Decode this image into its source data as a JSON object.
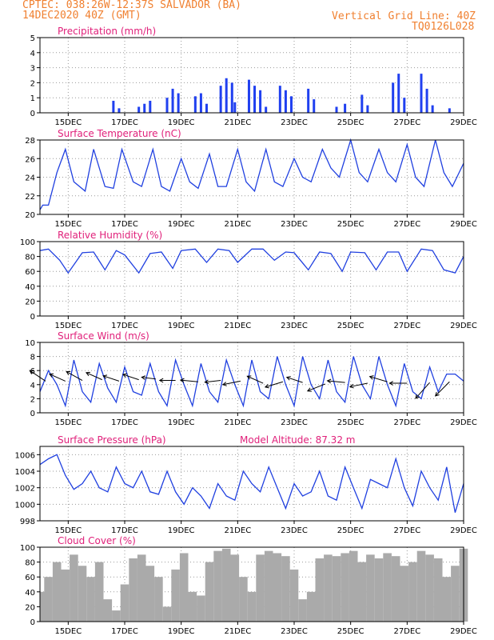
{
  "header": {
    "line1": "CPTEC:   038:26W-12:37S   SALVADOR (BA)",
    "line2": "14DEC2020 40Z (GMT)",
    "vgrid": "Vertical Grid Line: 40Z",
    "code": "TQ0126L028"
  },
  "colors": {
    "header": "#f08030",
    "title": "#e0207a",
    "line": "#2040e0",
    "bar": "#2040f0",
    "cloud": "#aaaaaa",
    "grid": "#999999"
  },
  "x_ticks": [
    "15DEC",
    "17DEC",
    "19DEC",
    "21DEC",
    "23DEC",
    "25DEC",
    "27DEC",
    "29DEC"
  ],
  "chart_data": [
    {
      "type": "bar",
      "title": "Precipitation (mm/h)",
      "ylim": [
        0,
        5
      ],
      "yticks": [
        "0",
        "1",
        "2",
        "3",
        "4",
        "5"
      ],
      "xlim": [
        14.0,
        29.0
      ],
      "x": [
        16.6,
        16.8,
        17.5,
        17.7,
        17.9,
        18.5,
        18.7,
        18.9,
        19.5,
        19.7,
        19.9,
        20.4,
        20.6,
        20.8,
        20.9,
        21.4,
        21.6,
        21.8,
        22.0,
        22.5,
        22.7,
        22.9,
        23.5,
        23.7,
        24.5,
        24.8,
        25.4,
        25.6,
        26.5,
        26.7,
        26.9,
        27.5,
        27.7,
        27.9,
        28.5
      ],
      "values": [
        0.8,
        0.3,
        0.4,
        0.6,
        0.8,
        1.0,
        1.6,
        1.3,
        1.1,
        1.3,
        0.6,
        1.8,
        2.3,
        2.0,
        0.7,
        2.2,
        1.8,
        1.5,
        0.4,
        1.8,
        1.5,
        1.1,
        1.6,
        0.9,
        0.4,
        0.6,
        1.2,
        0.5,
        2.0,
        2.6,
        1.0,
        2.6,
        1.6,
        0.5,
        0.3
      ]
    },
    {
      "type": "line",
      "title": "Surface Temperature (nC)",
      "ylim": [
        20,
        28
      ],
      "yticks": [
        "20",
        "22",
        "24",
        "26",
        "28"
      ],
      "xlim": [
        14.0,
        29.0
      ],
      "x": [
        14.0,
        14.1,
        14.3,
        14.6,
        14.9,
        15.2,
        15.6,
        15.9,
        16.3,
        16.6,
        16.9,
        17.3,
        17.6,
        18.0,
        18.3,
        18.6,
        19.0,
        19.3,
        19.6,
        20.0,
        20.3,
        20.6,
        21.0,
        21.3,
        21.6,
        22.0,
        22.3,
        22.6,
        23.0,
        23.3,
        23.6,
        24.0,
        24.3,
        24.6,
        25.0,
        25.3,
        25.6,
        26.0,
        26.3,
        26.6,
        27.0,
        27.3,
        27.6,
        28.0,
        28.3,
        28.6,
        29.0
      ],
      "values": [
        20.5,
        21.0,
        21.0,
        24.5,
        27.0,
        23.5,
        22.5,
        27.0,
        23.0,
        22.8,
        27.0,
        23.5,
        23.0,
        27.0,
        23.0,
        22.5,
        26.0,
        23.5,
        22.8,
        26.5,
        23.0,
        23.0,
        27.0,
        23.5,
        22.5,
        27.0,
        23.5,
        23.0,
        26.0,
        24.0,
        23.5,
        27.0,
        25.0,
        24.0,
        28.0,
        24.5,
        23.5,
        27.0,
        24.5,
        23.5,
        27.5,
        24.0,
        23.0,
        28.0,
        24.5,
        23.0,
        25.5
      ]
    },
    {
      "type": "line",
      "title": "Relative Humidity (%)",
      "ylim": [
        0,
        100
      ],
      "yticks": [
        "0",
        "20",
        "40",
        "60",
        "80",
        "100"
      ],
      "xlim": [
        14.0,
        29.0
      ],
      "x": [
        14.0,
        14.3,
        14.7,
        15.0,
        15.5,
        15.9,
        16.3,
        16.7,
        17.0,
        17.5,
        17.9,
        18.3,
        18.7,
        19.0,
        19.5,
        19.9,
        20.3,
        20.7,
        21.0,
        21.5,
        21.9,
        22.3,
        22.7,
        23.0,
        23.5,
        23.9,
        24.3,
        24.7,
        25.0,
        25.5,
        25.9,
        26.3,
        26.7,
        27.0,
        27.5,
        27.9,
        28.3,
        28.7,
        29.0
      ],
      "values": [
        88,
        90,
        75,
        58,
        85,
        86,
        62,
        88,
        82,
        58,
        84,
        86,
        64,
        88,
        90,
        72,
        90,
        88,
        72,
        90,
        90,
        75,
        86,
        85,
        62,
        86,
        84,
        60,
        86,
        85,
        62,
        86,
        86,
        60,
        90,
        88,
        62,
        58,
        80
      ]
    },
    {
      "type": "line",
      "title": "Surface Wind (m/s)",
      "ylim": [
        0,
        10
      ],
      "yticks": [
        "0",
        "2",
        "4",
        "6",
        "8",
        "10"
      ],
      "xlim": [
        14.0,
        29.0
      ],
      "x": [
        14.0,
        14.3,
        14.6,
        14.9,
        15.2,
        15.5,
        15.8,
        16.1,
        16.4,
        16.7,
        17.0,
        17.3,
        17.6,
        17.9,
        18.2,
        18.5,
        18.8,
        19.1,
        19.4,
        19.7,
        20.0,
        20.3,
        20.6,
        20.9,
        21.2,
        21.5,
        21.8,
        22.1,
        22.4,
        22.7,
        23.0,
        23.3,
        23.6,
        23.9,
        24.2,
        24.5,
        24.8,
        25.1,
        25.4,
        25.7,
        26.0,
        26.3,
        26.6,
        26.9,
        27.2,
        27.5,
        27.8,
        28.1,
        28.4,
        28.7,
        29.0
      ],
      "values": [
        3.0,
        6.0,
        4.0,
        1.0,
        7.5,
        3.0,
        1.5,
        7.0,
        3.5,
        1.5,
        6.5,
        3.0,
        2.5,
        7.0,
        3.0,
        1.0,
        7.5,
        4.0,
        1.0,
        7.0,
        3.0,
        1.5,
        7.5,
        4.0,
        1.0,
        7.5,
        3.0,
        2.0,
        8.0,
        4.0,
        1.0,
        8.0,
        4.0,
        2.0,
        7.5,
        3.0,
        1.5,
        8.0,
        4.0,
        2.0,
        8.0,
        4.0,
        1.0,
        7.0,
        3.0,
        2.0,
        6.5,
        3.0,
        5.5,
        5.5,
        4.5
      ],
      "arrows": {
        "x": [
          14.2,
          14.9,
          15.5,
          16.2,
          16.8,
          17.5,
          18.1,
          18.8,
          19.6,
          20.4,
          21.1,
          21.9,
          22.6,
          23.3,
          24.1,
          24.8,
          25.6,
          26.3,
          27.0,
          27.8,
          28.5
        ],
        "y": [
          4.5,
          4.5,
          4.6,
          4.7,
          4.5,
          4.7,
          4.8,
          4.6,
          4.4,
          4.6,
          4.5,
          4.2,
          4.4,
          4.3,
          4.1,
          4.3,
          4.2,
          4.4,
          4.2,
          4.3,
          4.4
        ],
        "u": [
          -0.9,
          -0.9,
          -0.9,
          -0.9,
          -0.9,
          -0.9,
          -0.8,
          -0.9,
          -1.0,
          -0.9,
          -1.0,
          -0.9,
          -1.0,
          -0.9,
          -1.0,
          -1.0,
          -1.0,
          -1.0,
          -1.0,
          -0.8,
          -0.8
        ],
        "v": [
          0.6,
          0.4,
          0.5,
          0.4,
          0.3,
          0.3,
          0.1,
          0.0,
          0.1,
          -0.1,
          -0.2,
          0.4,
          -0.3,
          0.3,
          -0.4,
          0.1,
          -0.2,
          0.3,
          0.0,
          -0.9,
          -0.8
        ]
      }
    },
    {
      "type": "line",
      "title": "Surface Pressure (hPa)",
      "annotation": "Model Altitude: 87.32  m",
      "ylim": [
        998,
        1007
      ],
      "yticks": [
        "998",
        "1000",
        "1002",
        "1004",
        "1006"
      ],
      "xlim": [
        14.0,
        29.0
      ],
      "x": [
        14.0,
        14.3,
        14.6,
        14.9,
        15.2,
        15.5,
        15.8,
        16.1,
        16.4,
        16.7,
        17.0,
        17.3,
        17.6,
        17.9,
        18.2,
        18.5,
        18.8,
        19.1,
        19.4,
        19.7,
        20.0,
        20.3,
        20.6,
        20.9,
        21.2,
        21.5,
        21.8,
        22.1,
        22.4,
        22.7,
        23.0,
        23.3,
        23.6,
        23.9,
        24.2,
        24.5,
        24.8,
        25.1,
        25.4,
        25.7,
        26.0,
        26.3,
        26.6,
        26.9,
        27.2,
        27.5,
        27.8,
        28.1,
        28.4,
        28.7,
        29.0
      ],
      "values": [
        1004.8,
        1005.5,
        1006.0,
        1003.5,
        1001.8,
        1002.5,
        1004.0,
        1002.0,
        1001.5,
        1004.5,
        1002.5,
        1002.0,
        1004.0,
        1001.5,
        1001.2,
        1004.0,
        1001.5,
        1000.0,
        1002.0,
        1001.0,
        999.5,
        1002.5,
        1001.0,
        1000.5,
        1004.0,
        1002.5,
        1001.5,
        1004.5,
        1002.0,
        999.5,
        1002.5,
        1001.0,
        1001.5,
        1004.0,
        1001.0,
        1000.5,
        1004.5,
        1002.0,
        999.5,
        1003.0,
        1002.5,
        1002.0,
        1005.5,
        1002.0,
        999.8,
        1004.0,
        1002.0,
        1000.5,
        1004.5,
        999.0,
        1002.5
      ]
    },
    {
      "type": "bar",
      "title": "Cloud Cover (%)",
      "ylim": [
        0,
        100
      ],
      "yticks": [
        "0",
        "20",
        "40",
        "60",
        "80",
        "100"
      ],
      "xlim": [
        14.0,
        29.0
      ],
      "x": [
        14.0,
        14.3,
        14.6,
        14.9,
        15.2,
        15.5,
        15.8,
        16.1,
        16.4,
        16.7,
        17.0,
        17.3,
        17.6,
        17.9,
        18.2,
        18.5,
        18.8,
        19.1,
        19.4,
        19.7,
        20.0,
        20.3,
        20.6,
        20.9,
        21.2,
        21.5,
        21.8,
        22.1,
        22.4,
        22.7,
        23.0,
        23.3,
        23.6,
        23.9,
        24.2,
        24.5,
        24.8,
        25.1,
        25.4,
        25.7,
        26.0,
        26.3,
        26.6,
        26.9,
        27.2,
        27.5,
        27.8,
        28.1,
        28.4,
        28.7,
        29.0
      ],
      "values": [
        40,
        60,
        80,
        70,
        90,
        75,
        60,
        80,
        30,
        15,
        50,
        85,
        90,
        75,
        60,
        20,
        70,
        92,
        40,
        35,
        80,
        95,
        98,
        90,
        60,
        40,
        90,
        95,
        92,
        88,
        70,
        30,
        40,
        85,
        90,
        88,
        92,
        95,
        80,
        90,
        85,
        92,
        88,
        75,
        80,
        95,
        90,
        85,
        60,
        75,
        98
      ]
    }
  ]
}
